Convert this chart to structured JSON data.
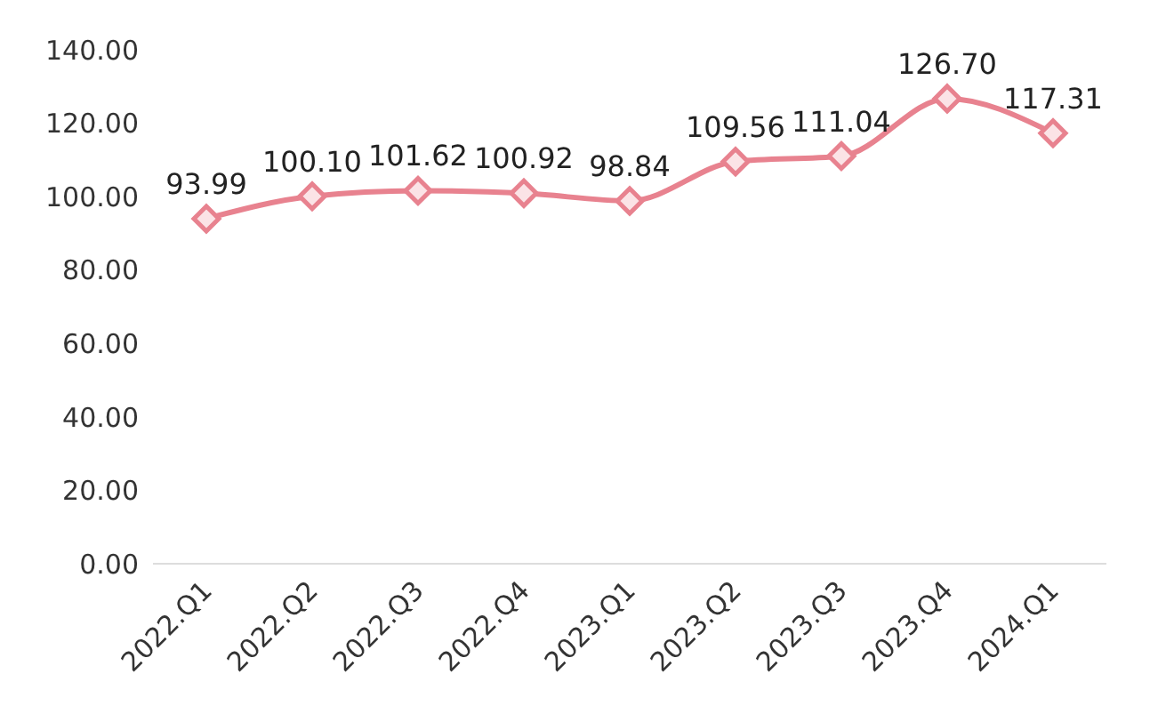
{
  "chart_data": {
    "type": "line",
    "categories": [
      "2022.Q1",
      "2022.Q2",
      "2022.Q3",
      "2022.Q4",
      "2023.Q1",
      "2023.Q2",
      "2023.Q3",
      "2023.Q4",
      "2024.Q1"
    ],
    "series": [
      {
        "color": "#e8828f",
        "values": [
          93.99,
          100.1,
          101.62,
          100.92,
          98.84,
          109.56,
          111.04,
          126.7,
          117.31
        ],
        "value_labels": [
          "93.99",
          "100.10",
          "101.62",
          "100.92",
          "98.84",
          "109.56",
          "111.04",
          "126.70",
          "117.31"
        ]
      }
    ],
    "ylim": [
      0,
      140
    ],
    "yticks": [
      {
        "value": 0,
        "label": "0.00"
      },
      {
        "value": 20,
        "label": "20.00"
      },
      {
        "value": 40,
        "label": "40.00"
      },
      {
        "value": 60,
        "label": "60.00"
      },
      {
        "value": 80,
        "label": "80.00"
      },
      {
        "value": 100,
        "label": "100.00"
      },
      {
        "value": 120,
        "label": "120.00"
      },
      {
        "value": 140,
        "label": "140.00"
      }
    ],
    "grid": false,
    "legend": false,
    "marker": "diamond",
    "line_style": "solid"
  }
}
